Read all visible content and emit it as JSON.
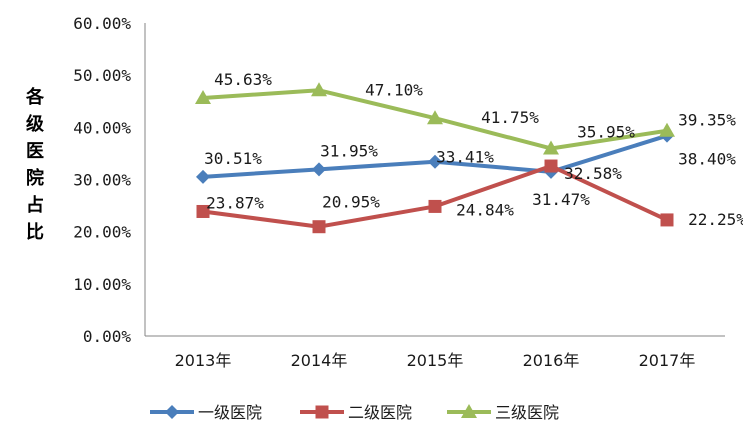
{
  "chart_data": {
    "type": "line",
    "categories": [
      "2013年",
      "2014年",
      "2015年",
      "2016年",
      "2017年"
    ],
    "ylabel": "各级医院占比",
    "ylim": [
      0,
      60
    ],
    "yticks": [
      "0.00%",
      "10.00%",
      "20.00%",
      "30.00%",
      "40.00%",
      "50.00%",
      "60.00%"
    ],
    "grid": false,
    "legend": "bottom",
    "series": [
      {
        "name": "一级医院",
        "values": [
          30.51,
          31.95,
          33.41,
          31.47,
          38.4
        ],
        "labels": [
          "30.51%",
          "31.95%",
          "33.41%",
          "31.47%",
          "38.40%"
        ],
        "color": "#4a7ebb",
        "marker": "diamond"
      },
      {
        "name": "二级医院",
        "values": [
          23.87,
          20.95,
          24.84,
          32.58,
          22.25
        ],
        "labels": [
          "23.87%",
          "20.95%",
          "24.84%",
          "32.58%",
          "22.25%"
        ],
        "color": "#c0504d",
        "marker": "square"
      },
      {
        "name": "三级医院",
        "values": [
          45.63,
          47.1,
          41.75,
          35.95,
          39.35
        ],
        "labels": [
          "45.63%",
          "47.10%",
          "41.75%",
          "35.95%",
          "39.35%"
        ],
        "color": "#9bbb59",
        "marker": "triangle"
      }
    ]
  }
}
